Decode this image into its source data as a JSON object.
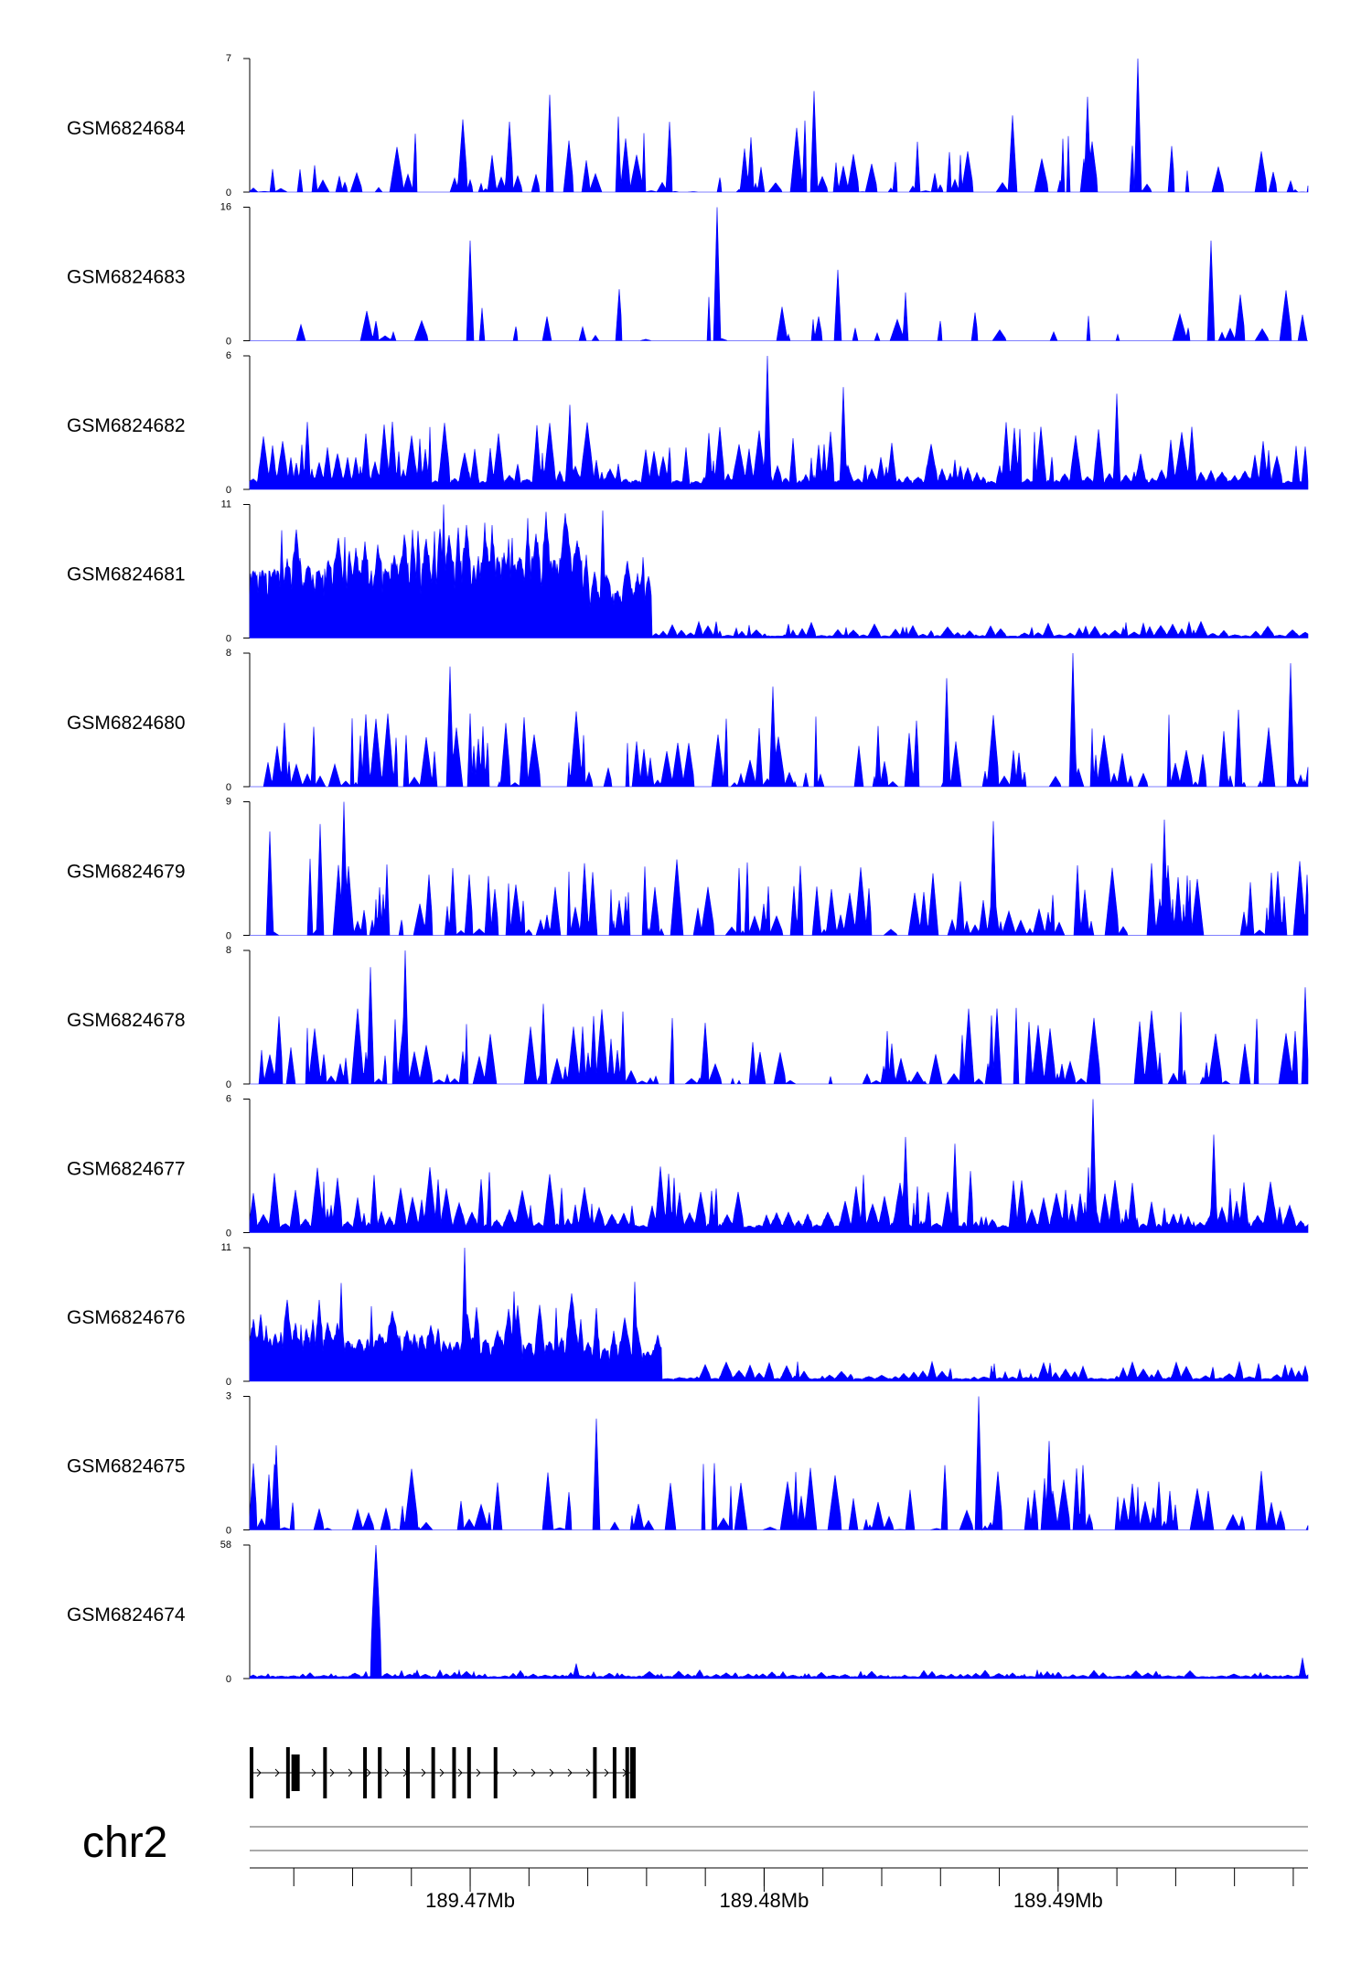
{
  "chart_data": {
    "type": "area",
    "title": "",
    "colors": {
      "signal": "#0000ff",
      "axis": "#000000",
      "gene": "#000000"
    },
    "chromosome": "chr2",
    "x_range_mb": [
      189.4625,
      189.4985
    ],
    "position_ticks": [
      189.47,
      189.48,
      189.49
    ],
    "position_tick_labels": [
      "189.47Mb",
      "189.48Mb",
      "189.49Mb"
    ],
    "minor_tick_step_mb": 0.002,
    "tracks": [
      {
        "name": "GSM6824684",
        "ymax": 7,
        "ymin": 0,
        "ymax_label": "7",
        "ymin_label": "0",
        "profile": {
          "seed": 684,
          "base": 0.0,
          "density": 0.55,
          "spike": 0.58,
          "spike_max": 1.0,
          "zero_gaps": true,
          "peaks": [
            [
              189.4927,
              7.0
            ],
            [
              189.4817,
              5.3
            ],
            [
              189.4727,
              5.1
            ],
            [
              189.491,
              5.0
            ]
          ]
        }
      },
      {
        "name": "GSM6824683",
        "ymax": 16,
        "ymin": 0,
        "ymax_label": "16",
        "ymin_label": "0",
        "profile": {
          "seed": 683,
          "base": 0.0,
          "density": 0.32,
          "spike": 0.4,
          "spike_max": 0.75,
          "zero_gaps": true,
          "start": 189.4641,
          "peaks": [
            [
              189.4784,
              16.0
            ],
            [
              189.47,
              12.0
            ],
            [
              189.4952,
              12.0
            ],
            [
              189.4825,
              8.5
            ]
          ]
        }
      },
      {
        "name": "GSM6824682",
        "ymax": 6,
        "ymin": 0,
        "ymax_label": "6",
        "ymin_label": "0",
        "profile": {
          "seed": 682,
          "base": 0.06,
          "density": 0.85,
          "spike": 0.45,
          "spike_max": 0.72,
          "zero_gaps": false,
          "peaks": [
            [
              189.4801,
              6.0
            ],
            [
              189.4827,
              4.6
            ],
            [
              189.492,
              4.3
            ],
            [
              189.4734,
              3.8
            ]
          ]
        }
      },
      {
        "name": "GSM6824681",
        "ymax": 11,
        "ymin": 0,
        "ymax_label": "11",
        "ymin_label": "0",
        "profile": {
          "seed": 681,
          "base": 0.0,
          "density": 0.9,
          "spike": 0.6,
          "spike_max": 1.0,
          "zero_gaps": false,
          "segments": [
            [
              189.4625,
              189.4703,
              0.5,
              0.35
            ],
            [
              189.4703,
              189.4735,
              0.58,
              0.38
            ],
            [
              189.4735,
              189.476,
              0.35,
              0.3
            ],
            [
              189.476,
              189.4985,
              0.015,
              0.11
            ]
          ],
          "peaks": [
            [
              189.4691,
              11.0
            ],
            [
              189.4745,
              10.5
            ],
            [
              189.4705,
              9.5
            ],
            [
              189.4688,
              8.8
            ]
          ]
        }
      },
      {
        "name": "GSM6824680",
        "ymax": 8,
        "ymin": 0,
        "ymax_label": "8",
        "ymin_label": "0",
        "profile": {
          "seed": 680,
          "base": 0.03,
          "density": 0.7,
          "spike": 0.55,
          "spike_max": 0.9,
          "zero_gaps": true,
          "peaks": [
            [
              189.4905,
              8.0
            ],
            [
              189.4693,
              7.2
            ],
            [
              189.4979,
              7.4
            ],
            [
              189.4803,
              6.0
            ],
            [
              189.4862,
              6.5
            ]
          ]
        }
      },
      {
        "name": "GSM6824679",
        "ymax": 9,
        "ymin": 0,
        "ymax_label": "9",
        "ymin_label": "0",
        "profile": {
          "seed": 679,
          "base": 0.03,
          "density": 0.75,
          "spike": 0.55,
          "spike_max": 0.85,
          "zero_gaps": true,
          "peaks": [
            [
              189.4657,
              9.0
            ],
            [
              189.4936,
              7.8
            ],
            [
              189.4878,
              7.7
            ],
            [
              189.4649,
              7.5
            ],
            [
              189.4632,
              7.0
            ]
          ]
        }
      },
      {
        "name": "GSM6824678",
        "ymax": 8,
        "ymin": 0,
        "ymax_label": "8",
        "ymin_label": "0",
        "profile": {
          "seed": 678,
          "base": 0.02,
          "density": 0.75,
          "spike": 0.55,
          "spike_max": 0.85,
          "zero_gaps": true,
          "peaks": [
            [
              189.4678,
              8.0
            ],
            [
              189.4666,
              7.0
            ],
            [
              189.4984,
              5.8
            ],
            [
              189.4725,
              4.8
            ]
          ]
        }
      },
      {
        "name": "GSM6824677",
        "ymax": 6,
        "ymin": 0,
        "ymax_label": "6",
        "ymin_label": "0",
        "profile": {
          "seed": 677,
          "base": 0.05,
          "density": 0.85,
          "spike": 0.45,
          "spike_max": 0.75,
          "zero_gaps": false,
          "peaks": [
            [
              189.4912,
              6.0
            ],
            [
              189.4848,
              4.3
            ],
            [
              189.4953,
              4.4
            ],
            [
              189.4865,
              4.0
            ]
          ]
        }
      },
      {
        "name": "GSM6824676",
        "ymax": 11,
        "ymin": 0,
        "ymax_label": "11",
        "ymin_label": "0",
        "profile": {
          "seed": 676,
          "base": 0.0,
          "density": 0.9,
          "spike": 0.6,
          "spike_max": 1.0,
          "zero_gaps": false,
          "segments": [
            [
              189.4625,
              189.469,
              0.3,
              0.38
            ],
            [
              189.469,
              189.4735,
              0.28,
              0.42
            ],
            [
              189.4735,
              189.4765,
              0.22,
              0.35
            ],
            [
              189.4765,
              189.4985,
              0.02,
              0.13
            ]
          ],
          "peaks": [
            [
              189.4698,
              11.0
            ],
            [
              189.4756,
              8.2
            ],
            [
              189.4656,
              8.1
            ],
            [
              189.4715,
              7.4
            ]
          ]
        }
      },
      {
        "name": "GSM6824675",
        "ymax": 3,
        "ymin": 0,
        "ymax_label": "3",
        "ymin_label": "0",
        "profile": {
          "seed": 675,
          "base": 0.0,
          "density": 0.6,
          "spike": 0.5,
          "spike_max": 0.85,
          "zero_gaps": true,
          "peaks": [
            [
              189.4873,
              3.0
            ],
            [
              189.4743,
              2.5
            ],
            [
              189.4897,
              2.0
            ],
            [
              189.4634,
              1.9
            ]
          ]
        }
      },
      {
        "name": "GSM6824674",
        "ymax": 58,
        "ymin": 0,
        "ymax_label": "58",
        "ymin_label": "0",
        "profile": {
          "seed": 674,
          "base": 0.015,
          "density": 1.0,
          "spike": 0.05,
          "spike_max": 0.08,
          "zero_gaps": false,
          "big_peak": [
            189.4668,
            58.0
          ],
          "peaks": [
            [
              189.4736,
              6.5
            ],
            [
              189.4983,
              9.0
            ],
            [
              189.4681,
              2.5
            ]
          ]
        }
      }
    ],
    "gene": {
      "strand": "+",
      "start_mb": 189.4625,
      "end_mb": 189.4756,
      "exons_mb": [
        [
          189.4625,
          189.46258
        ],
        [
          189.46374,
          189.46382
        ],
        [
          189.46392,
          189.4642
        ],
        [
          189.465,
          189.46509
        ],
        [
          189.46636,
          189.46643
        ],
        [
          189.46686,
          189.46699
        ],
        [
          189.46782,
          189.46788
        ],
        [
          189.46868,
          189.46875
        ],
        [
          189.46939,
          189.46945
        ],
        [
          189.4699,
          189.46997
        ],
        [
          189.4708,
          189.47086
        ],
        [
          189.47418,
          189.47425
        ],
        [
          189.47485,
          189.4749
        ],
        [
          189.47528,
          189.47535
        ],
        [
          189.47544,
          189.47563
        ]
      ]
    }
  }
}
